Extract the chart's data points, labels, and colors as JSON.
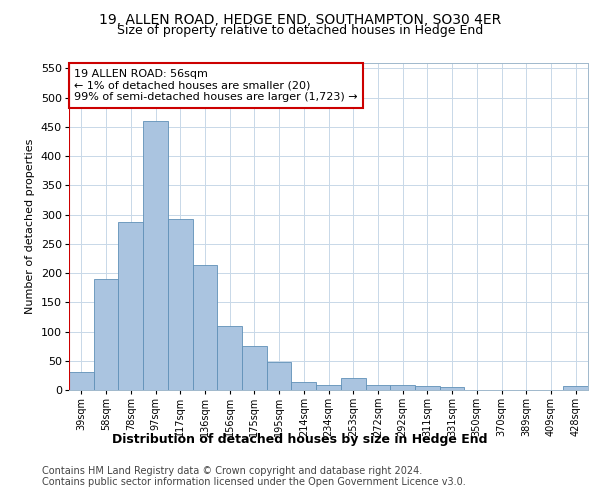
{
  "title": "19, ALLEN ROAD, HEDGE END, SOUTHAMPTON, SO30 4ER",
  "subtitle": "Size of property relative to detached houses in Hedge End",
  "xlabel": "Distribution of detached houses by size in Hedge End",
  "ylabel": "Number of detached properties",
  "categories": [
    "39sqm",
    "58sqm",
    "78sqm",
    "97sqm",
    "117sqm",
    "136sqm",
    "156sqm",
    "175sqm",
    "195sqm",
    "214sqm",
    "234sqm",
    "253sqm",
    "272sqm",
    "292sqm",
    "311sqm",
    "331sqm",
    "350sqm",
    "370sqm",
    "389sqm",
    "409sqm",
    "428sqm"
  ],
  "values": [
    30,
    190,
    288,
    460,
    292,
    213,
    110,
    75,
    48,
    13,
    9,
    20,
    9,
    8,
    6,
    5,
    0,
    0,
    0,
    0,
    6
  ],
  "bar_color": "#aac4e0",
  "bar_edge_color": "#6090b8",
  "highlight_line_color": "#cc0000",
  "annotation_text": "19 ALLEN ROAD: 56sqm\n← 1% of detached houses are smaller (20)\n99% of semi-detached houses are larger (1,723) →",
  "annotation_box_color": "#ffffff",
  "annotation_box_edge": "#cc0000",
  "ylim": [
    0,
    560
  ],
  "yticks": [
    0,
    50,
    100,
    150,
    200,
    250,
    300,
    350,
    400,
    450,
    500,
    550
  ],
  "background_color": "#ffffff",
  "grid_color": "#c8d8e8",
  "footer_line1": "Contains HM Land Registry data © Crown copyright and database right 2024.",
  "footer_line2": "Contains public sector information licensed under the Open Government Licence v3.0.",
  "title_fontsize": 10,
  "subtitle_fontsize": 9,
  "annotation_fontsize": 8,
  "ylabel_fontsize": 8,
  "xtick_fontsize": 7,
  "ytick_fontsize": 8,
  "xlabel_fontsize": 9,
  "footer_fontsize": 7
}
